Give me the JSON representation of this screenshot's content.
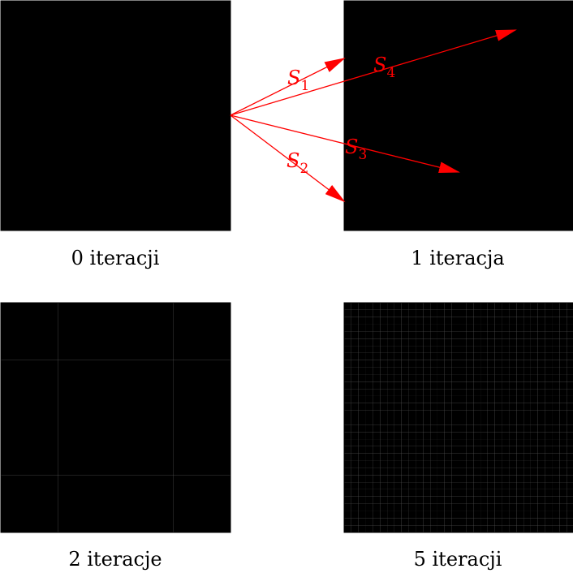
{
  "colors": {
    "ink": "#000000",
    "paper": "#ffffff",
    "arrow": "#ff0000"
  },
  "transforms": [
    {
      "symbol": "S",
      "index": "1",
      "target_cell": [
        0,
        0
      ]
    },
    {
      "symbol": "S",
      "index": "2",
      "target_cell": [
        0,
        1
      ]
    },
    {
      "symbol": "S",
      "index": "3",
      "target_cell": [
        1,
        1
      ]
    },
    {
      "symbol": "S",
      "index": "4",
      "target_cell": [
        1,
        0
      ]
    }
  ],
  "panels": [
    {
      "caption": "0 iteracji",
      "iterations": 0
    },
    {
      "caption": "1 iteracja",
      "iterations": 1
    },
    {
      "caption": "2 iteracje",
      "iterations": 2
    },
    {
      "caption": "5 iteracji",
      "iterations": 5
    }
  ]
}
